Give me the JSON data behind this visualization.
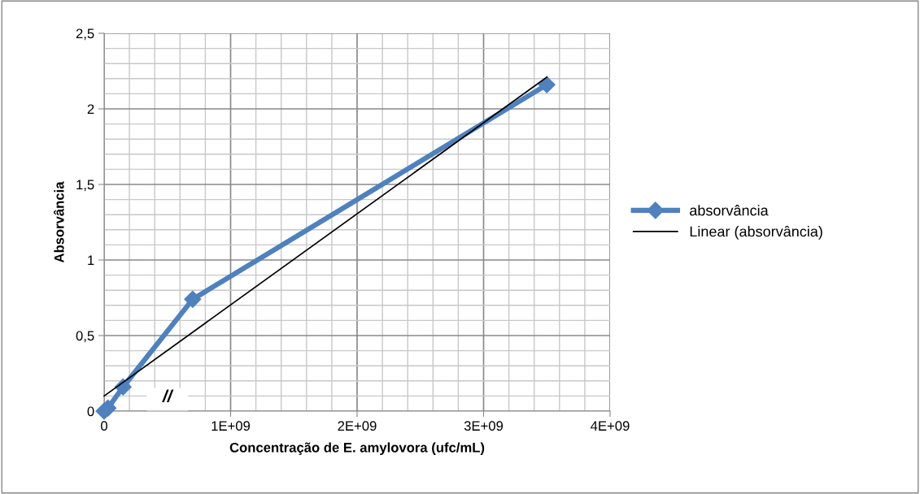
{
  "chart_data": {
    "type": "line",
    "xlabel": "Concentração de E. amylovora (ufc/mL)",
    "ylabel": "Absorvância",
    "xlim": [
      0,
      4000000000
    ],
    "ylim": [
      0,
      2.5
    ],
    "xticks": [
      0,
      {
        "value": 1000000000,
        "label": "1E+09"
      },
      {
        "value": 2000000000,
        "label": "2E+09"
      },
      {
        "value": 3000000000,
        "label": "3E+09"
      },
      {
        "value": 4000000000,
        "label": "4E+09"
      }
    ],
    "yticks": [
      0,
      {
        "value": 0.5,
        "label": "0,5"
      },
      1,
      {
        "value": 1.5,
        "label": "1,5"
      },
      2,
      {
        "value": 2.5,
        "label": "2,5"
      }
    ],
    "grid": true,
    "legend": "right",
    "marker": "diamond",
    "line_style": "solid",
    "annotations": [
      "//"
    ],
    "series": [
      {
        "name": "absorvância",
        "color": "#4f81bd",
        "x": [
          0,
          30000000,
          150000000,
          700000000,
          3500000000
        ],
        "values": [
          0,
          0.02,
          0.16,
          0.74,
          2.16
        ]
      },
      {
        "name": "Linear (absorvância)",
        "color": "#000000",
        "type": "line",
        "marker": "none",
        "x": [
          0,
          3500000000
        ],
        "values": [
          0.1,
          2.21
        ]
      }
    ]
  }
}
